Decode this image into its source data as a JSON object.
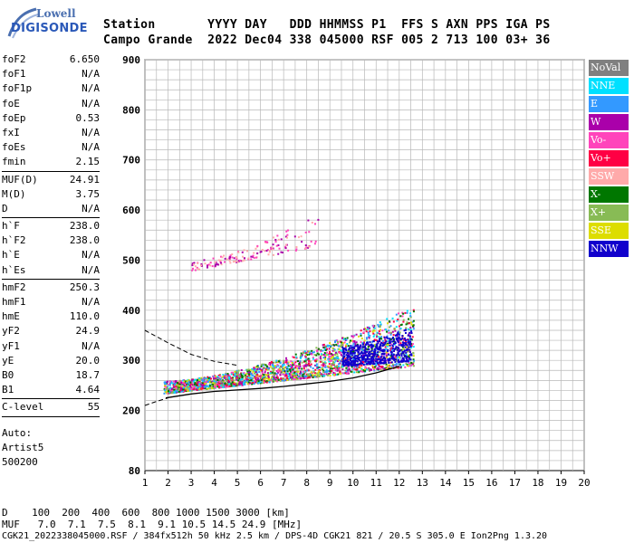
{
  "logo": {
    "line1": "Lowell",
    "line2": "DIGISONDE"
  },
  "header": {
    "row1": "Station       YYYY DAY   DDD HHMMSS P1  FFS S AXN PPS IGA PS",
    "row2": "Campo Grande  2022 Dec04 338 045000 RSF 005 2 713 100 03+ 36"
  },
  "params_a": [
    {
      "label": "foF2",
      "value": "6.650"
    },
    {
      "label": "foF1",
      "value": "N/A"
    },
    {
      "label": "foF1p",
      "value": "N/A"
    },
    {
      "label": "foE",
      "value": "N/A"
    },
    {
      "label": "foEp",
      "value": "0.53"
    },
    {
      "label": "fxI",
      "value": "N/A"
    },
    {
      "label": "foEs",
      "value": "N/A"
    },
    {
      "label": "fmin",
      "value": "2.15"
    }
  ],
  "params_b": [
    {
      "label": "MUF(D)",
      "value": "24.91"
    },
    {
      "label": "M(D)",
      "value": "3.75"
    },
    {
      "label": "D",
      "value": "N/A"
    }
  ],
  "params_c": [
    {
      "label": "h`F",
      "value": "238.0"
    },
    {
      "label": "h`F2",
      "value": "238.0"
    },
    {
      "label": "h`E",
      "value": "N/A"
    },
    {
      "label": "h`Es",
      "value": "N/A"
    }
  ],
  "params_d": [
    {
      "label": "hmF2",
      "value": "250.3"
    },
    {
      "label": "hmF1",
      "value": "N/A"
    },
    {
      "label": "hmE",
      "value": "110.0"
    },
    {
      "label": "yF2",
      "value": "24.9"
    },
    {
      "label": "yF1",
      "value": "N/A"
    },
    {
      "label": "yE",
      "value": "20.0"
    },
    {
      "label": "B0",
      "value": "18.7"
    },
    {
      "label": "B1",
      "value": "4.64"
    }
  ],
  "params_e": [
    {
      "label": "C-level",
      "value": "55"
    }
  ],
  "auto_lines": [
    "Auto:",
    "Artist5",
    "500200"
  ],
  "legend": [
    {
      "label": "NoVal",
      "color": "#808080"
    },
    {
      "label": "NNE",
      "color": "#00e0ff"
    },
    {
      "label": "E",
      "color": "#3399ff"
    },
    {
      "label": "W",
      "color": "#aa00aa"
    },
    {
      "label": "Vo-",
      "color": "#ff44bb"
    },
    {
      "label": "Vo+",
      "color": "#ff0044"
    },
    {
      "label": "SSW",
      "color": "#ffaaaa"
    },
    {
      "label": "X-",
      "color": "#007700"
    },
    {
      "label": "X+",
      "color": "#88bb55"
    },
    {
      "label": "SSE",
      "color": "#dddd00"
    },
    {
      "label": "NNW",
      "color": "#1100cc"
    }
  ],
  "footer": {
    "row1": "D    100  200  400  600  800 1000 1500 3000 [km]",
    "row2": "MUF   7.0  7.1  7.5  8.1  9.1 10.5 14.5 24.9 [MHz]",
    "row3": "CGK21_2022338045000.RSF / 384fx512h 50 kHz 2.5 km / DPS-4D CGK21 821 / 20.5 S 305.0 E Ion2Png 1.3.20"
  },
  "chart_data": {
    "type": "scatter",
    "xlim": [
      1,
      20
    ],
    "ylim": [
      80,
      900
    ],
    "x_ticks": [
      1,
      2,
      3,
      4,
      5,
      6,
      7,
      8,
      9,
      10,
      11,
      12,
      13,
      14,
      15,
      16,
      17,
      18,
      19,
      20
    ],
    "y_ticks": [
      80,
      200,
      300,
      400,
      500,
      600,
      700,
      800,
      900
    ],
    "grid": true,
    "echo_clusters": [
      {
        "name": "F-trace",
        "x_range": [
          1.8,
          12.6
        ],
        "height_base": [
          235,
          290
        ],
        "height_top": [
          260,
          410
        ],
        "colors": [
          "#ff0044",
          "#aa00aa",
          "#ff44bb",
          "#dddd00",
          "#00e0ff",
          "#3399ff",
          "#007700",
          "#88bb55"
        ]
      },
      {
        "name": "NNW",
        "x_range": [
          9.5,
          12.5
        ],
        "height_base": [
          290,
          300
        ],
        "height_top": [
          330,
          370
        ],
        "colors": [
          "#1100cc"
        ]
      },
      {
        "name": "multi-hop",
        "x_range": [
          3,
          8.5
        ],
        "height_base": [
          480,
          530
        ],
        "height_top": [
          500,
          600
        ],
        "colors": [
          "#aa00aa",
          "#ff44bb",
          "#ffaaaa"
        ]
      }
    ],
    "profile_line": [
      {
        "x": 1.9,
        "y": 225
      },
      {
        "x": 3,
        "y": 233
      },
      {
        "x": 4,
        "y": 238
      },
      {
        "x": 5,
        "y": 241
      },
      {
        "x": 6,
        "y": 244
      },
      {
        "x": 7,
        "y": 248
      },
      {
        "x": 8,
        "y": 253
      },
      {
        "x": 9,
        "y": 258
      },
      {
        "x": 10,
        "y": 265
      },
      {
        "x": 11,
        "y": 275
      },
      {
        "x": 12,
        "y": 288
      }
    ],
    "muf_curve": [
      {
        "x": 1,
        "y": 210
      },
      {
        "x": 1.5,
        "y": 218
      },
      {
        "x": 2,
        "y": 225
      }
    ],
    "upper_dashed": [
      {
        "x": 1,
        "y": 360
      },
      {
        "x": 2,
        "y": 335
      },
      {
        "x": 3,
        "y": 312
      },
      {
        "x": 4,
        "y": 298
      },
      {
        "x": 5,
        "y": 290
      }
    ]
  }
}
